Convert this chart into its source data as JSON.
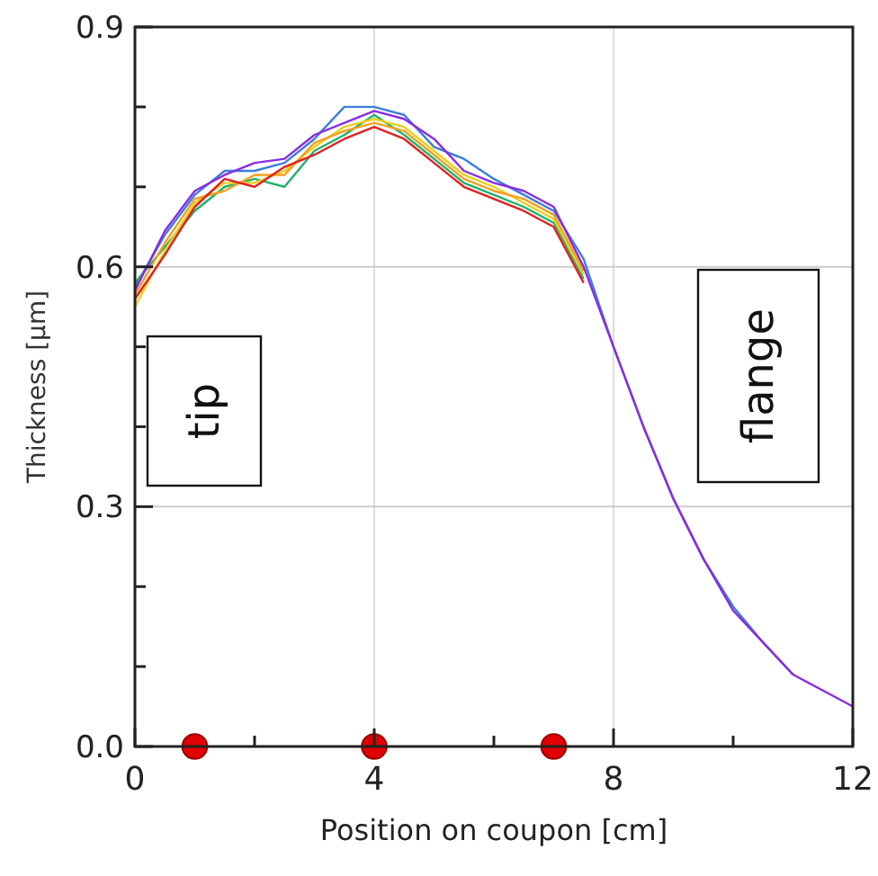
{
  "chart_data": {
    "type": "line",
    "xlabel": "Position on coupon [cm]",
    "ylabel": "Thickness [µm]",
    "x": [
      0,
      0.5,
      1,
      1.5,
      2,
      2.5,
      3,
      3.5,
      4,
      4.5,
      5,
      5.5,
      6,
      6.5,
      7,
      7.5,
      8,
      8.5,
      9,
      9.5,
      10,
      10.5,
      11,
      11.5,
      12
    ],
    "series": [
      {
        "color": "#3a7fdc",
        "values": [
          0.575,
          0.64,
          0.69,
          0.72,
          0.72,
          0.73,
          0.76,
          0.8,
          0.8,
          0.79,
          0.75,
          0.735,
          0.71,
          0.69,
          0.67,
          0.61,
          0.5,
          0.4,
          0.31,
          0.235,
          0.175,
          0.13,
          0.09,
          null,
          null
        ]
      },
      {
        "color": "#22b06a",
        "values": [
          0.58,
          0.625,
          0.67,
          0.7,
          0.71,
          0.7,
          0.745,
          0.765,
          0.79,
          0.765,
          0.735,
          0.705,
          0.69,
          0.675,
          0.655,
          0.585,
          null,
          null,
          null,
          null,
          null,
          null,
          null,
          null,
          null
        ]
      },
      {
        "color": "#e8d020",
        "values": [
          0.55,
          0.62,
          0.68,
          0.705,
          0.705,
          0.72,
          0.75,
          0.775,
          0.785,
          0.775,
          0.745,
          0.715,
          0.7,
          0.68,
          0.66,
          0.59,
          null,
          null,
          null,
          null,
          null,
          null,
          null,
          null,
          null
        ]
      },
      {
        "color": "#f5a020",
        "values": [
          0.565,
          0.63,
          0.685,
          0.695,
          0.715,
          0.715,
          0.755,
          0.77,
          0.78,
          0.77,
          0.74,
          0.71,
          0.695,
          0.685,
          0.665,
          0.595,
          null,
          null,
          null,
          null,
          null,
          null,
          null,
          null,
          null
        ]
      },
      {
        "color": "#e02020",
        "values": [
          0.56,
          0.615,
          0.675,
          0.71,
          0.7,
          0.725,
          0.74,
          0.76,
          0.775,
          0.76,
          0.73,
          0.7,
          0.685,
          0.67,
          0.65,
          0.58,
          null,
          null,
          null,
          null,
          null,
          null,
          null,
          null,
          null
        ]
      },
      {
        "color": "#8a2be2",
        "values": [
          0.57,
          0.645,
          0.695,
          0.715,
          0.73,
          0.735,
          0.765,
          0.78,
          0.795,
          0.785,
          0.76,
          0.72,
          0.705,
          0.695,
          0.675,
          0.6,
          0.5,
          0.4,
          0.31,
          0.235,
          0.17,
          0.13,
          0.09,
          0.07,
          0.05
        ]
      },
      {
        "type": "scatter",
        "x": [
          1,
          4,
          7
        ],
        "color": "#e00000",
        "marker": "circle",
        "values": [
          0,
          0,
          0
        ]
      }
    ],
    "marker": "none",
    "line_style": "solid",
    "grid": true,
    "xlim": [
      0,
      12
    ],
    "xticks": [
      0,
      {
        "value": 2,
        "label": null
      },
      4,
      {
        "value": 6,
        "label": null
      },
      8,
      {
        "value": 10,
        "label": null
      },
      12
    ],
    "ylim": [
      0,
      0.9
    ],
    "yticks": [
      {
        "value": 0,
        "label": "0.0"
      },
      {
        "value": 0.1,
        "label": null
      },
      {
        "value": 0.2,
        "label": null
      },
      0.3,
      {
        "value": 0.4,
        "label": null
      },
      {
        "value": 0.5,
        "label": null
      },
      0.6,
      {
        "value": 0.7,
        "label": null
      },
      {
        "value": 0.8,
        "label": null
      },
      0.9
    ],
    "annotations": [
      "tip",
      "flange"
    ]
  }
}
